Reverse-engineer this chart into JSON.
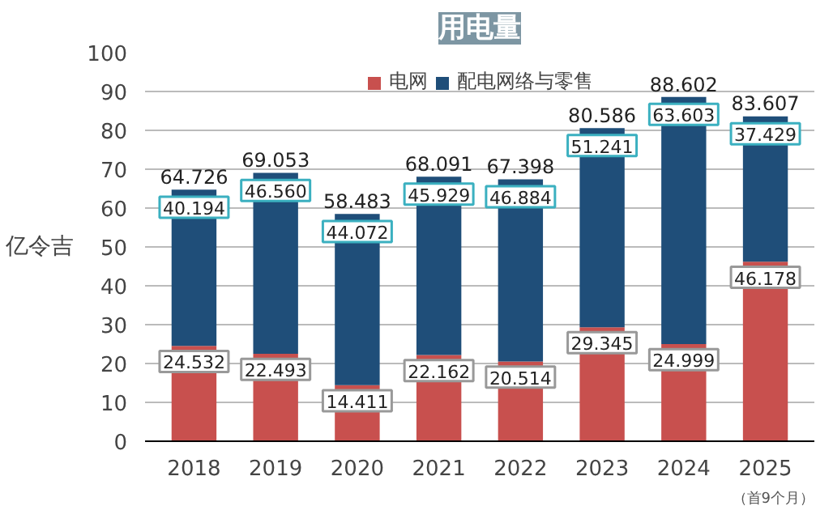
{
  "chart_data": {
    "type": "bar",
    "title": "用电量",
    "ylabel": "亿令吉",
    "stacked": true,
    "categories": [
      "2018",
      "2019",
      "2020",
      "2021",
      "2022",
      "2023",
      "2024",
      "2025"
    ],
    "series": [
      {
        "name": "电网",
        "color": "#c8504e",
        "values": [
          24.532,
          22.493,
          14.411,
          22.162,
          20.514,
          29.345,
          24.999,
          46.178
        ],
        "value_labels": [
          "24.532",
          "22.493",
          "14.411",
          "22.162",
          "20.514",
          "29.345",
          "24.999",
          "46.178"
        ]
      },
      {
        "name": "配电网络与零售",
        "color": "#1f4e79",
        "values": [
          40.194,
          46.56,
          44.072,
          45.929,
          46.884,
          51.241,
          63.603,
          37.429
        ],
        "value_labels": [
          "40.194",
          "46.560",
          "44.072",
          "45.929",
          "46.884",
          "51.241",
          "63.603",
          "37.429"
        ]
      }
    ],
    "totals": [
      "64.726",
      "69.053",
      "58.483",
      "68.091",
      "67.398",
      "80.586",
      "88.602",
      "83.607"
    ],
    "ylim": [
      0,
      100
    ],
    "yticks": [
      0,
      10,
      20,
      30,
      40,
      50,
      60,
      70,
      80,
      90,
      100
    ],
    "grid": "y",
    "legend": "top",
    "annotations": [
      "（首9个月）"
    ]
  }
}
